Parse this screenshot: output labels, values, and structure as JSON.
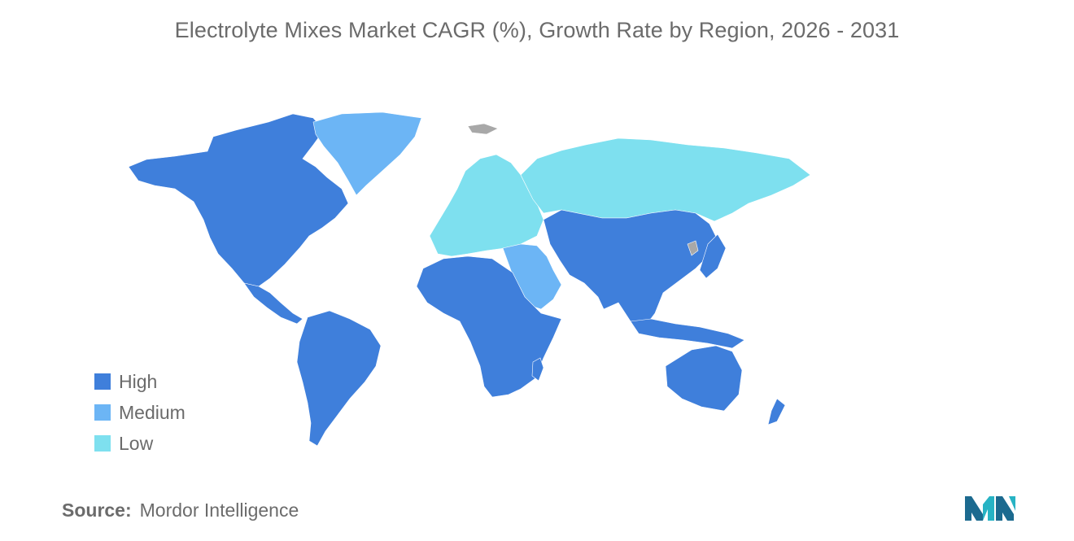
{
  "title": "Electrolyte Mixes Market CAGR (%), Growth Rate by Region, 2026 - 2031",
  "colors": {
    "high": "#3f7fdb",
    "medium": "#6cb5f5",
    "low": "#7ee0ef",
    "no_data": "#a8a8a8"
  },
  "legend": [
    {
      "label": "High",
      "color": "#3f7fdb"
    },
    {
      "label": "Medium",
      "color": "#6cb5f5"
    },
    {
      "label": "Low",
      "color": "#7ee0ef"
    }
  ],
  "regions": [
    {
      "name": "North America",
      "category": "High"
    },
    {
      "name": "South America",
      "category": "High"
    },
    {
      "name": "Africa",
      "category": "High"
    },
    {
      "name": "Asia-Pacific",
      "category": "High"
    },
    {
      "name": "Australia",
      "category": "High"
    },
    {
      "name": "Middle East",
      "category": "Medium"
    },
    {
      "name": "Greenland",
      "category": "Medium"
    },
    {
      "name": "Europe",
      "category": "Low"
    },
    {
      "name": "Russia",
      "category": "Low"
    }
  ],
  "source": {
    "key": "Source:",
    "value": "Mordor Intelligence"
  },
  "logo_icon": "mordor-intelligence-logo-icon"
}
